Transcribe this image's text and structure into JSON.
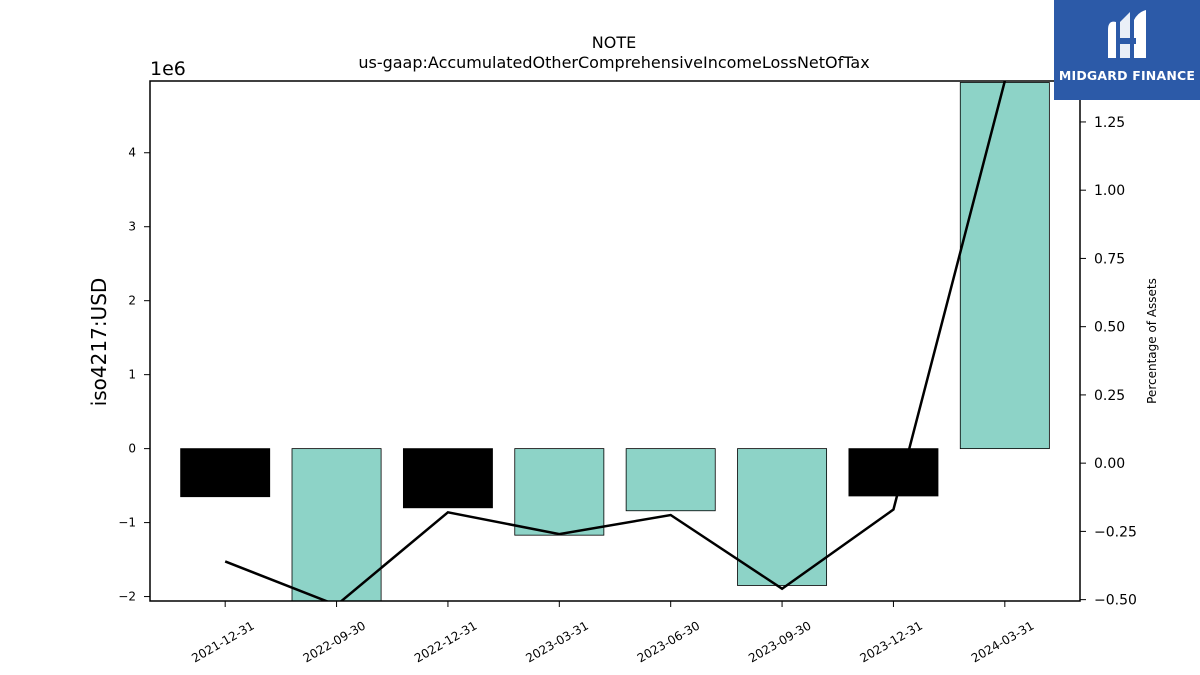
{
  "brand": {
    "name": "MIDGARD FINANCE",
    "bg_color": "#2c5aa8"
  },
  "chart_data": {
    "type": "bar",
    "title_line1": "NOTE",
    "title_line2": "us-gaap:AccumulatedOtherComprehensiveIncomeLossNetOfTax",
    "ylabel": "iso4217:USD",
    "y_offset_label": "1e6",
    "y2label": "Percentage of Assets",
    "categories": [
      "2021-12-31",
      "2022-09-30",
      "2022-12-31",
      "2023-03-31",
      "2023-06-30",
      "2023-09-30",
      "2023-12-31",
      "2024-03-31"
    ],
    "values": [
      -0.65,
      -2.1,
      -0.8,
      -1.17,
      -0.84,
      -1.85,
      -0.64,
      4.95
    ],
    "bar_colors": [
      "#000000",
      "#8dd3c7",
      "#000000",
      "#8dd3c7",
      "#8dd3c7",
      "#8dd3c7",
      "#000000",
      "#8dd3c7"
    ],
    "ylim": [
      -2.06,
      4.97
    ],
    "yticks": [
      -2,
      -1,
      0,
      1,
      2,
      3,
      4
    ],
    "ytick_labels": [
      "−2",
      "−1",
      "0",
      "1",
      "2",
      "3",
      "4"
    ],
    "percentage_line": [
      -0.36,
      -0.52,
      -0.18,
      -0.26,
      -0.19,
      -0.46,
      -0.17,
      1.4
    ],
    "y2lim": [
      -0.505,
      1.4
    ],
    "y2ticks": [
      -0.5,
      -0.25,
      0,
      0.25,
      0.5,
      0.75,
      1.0,
      1.25
    ],
    "y2tick_labels": [
      "−0.50",
      "−0.25",
      "0.00",
      "0.25",
      "0.50",
      "0.75",
      "1.00",
      "1.25"
    ],
    "line_color": "#000000",
    "grid": false
  }
}
